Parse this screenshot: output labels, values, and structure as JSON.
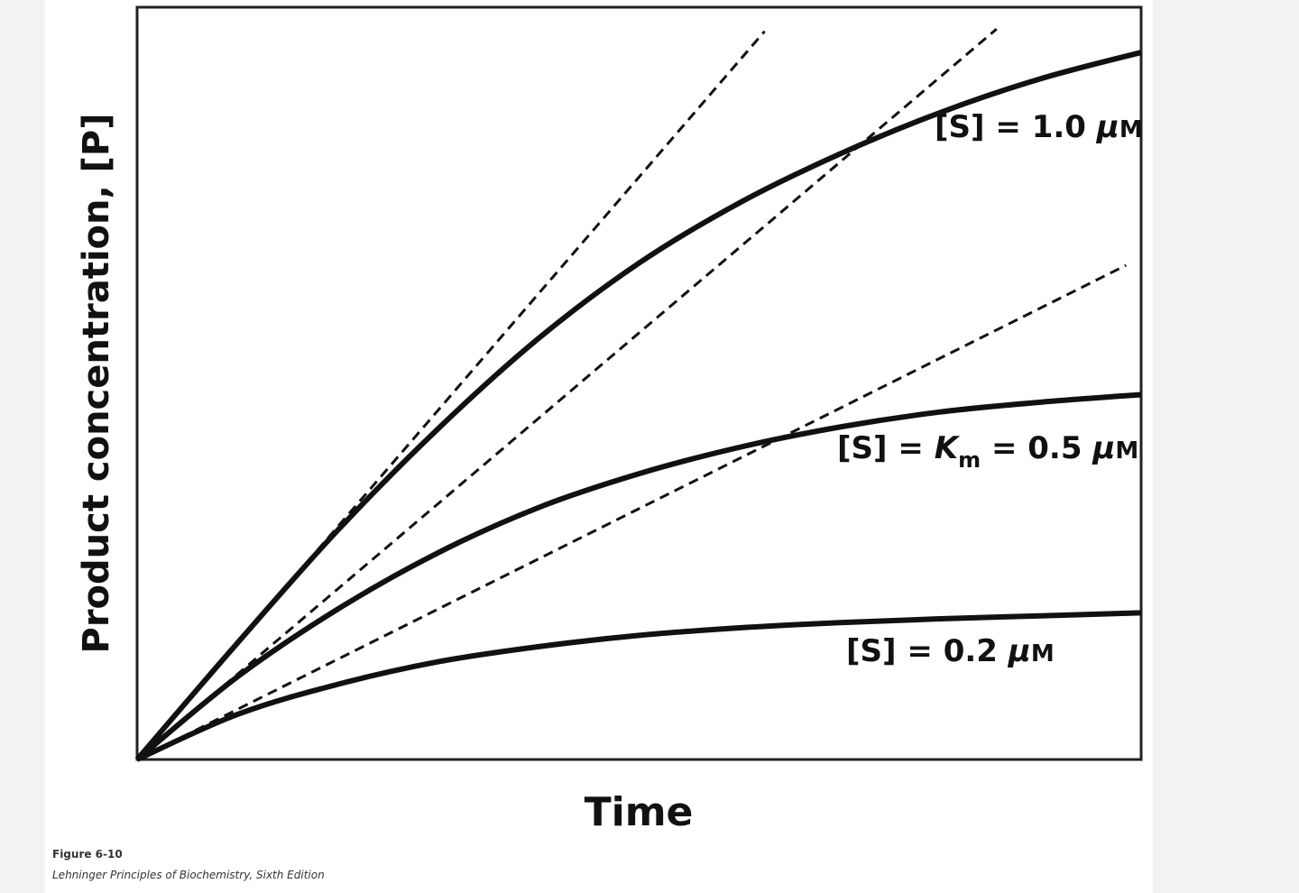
{
  "chart_data": {
    "type": "line",
    "title": "",
    "xlabel": "Time",
    "ylabel": "Product concentration, [P]",
    "xlim": [
      0,
      10
    ],
    "ylim": [
      0,
      10
    ],
    "grid": false,
    "x": [
      0,
      1,
      2,
      3,
      4,
      5,
      6,
      7,
      8,
      9,
      10
    ],
    "series": [
      {
        "name": "[S] = 1.0 μM",
        "label_parts": [
          "[S] = 1.0 ",
          "μ",
          "M"
        ],
        "values": [
          0,
          1.55,
          3.05,
          4.4,
          5.6,
          6.6,
          7.4,
          8.05,
          8.6,
          9.05,
          9.4
        ],
        "initial_rate_tangent": [
          [
            0,
            0
          ],
          [
            6.25,
            9.68
          ]
        ]
      },
      {
        "name": "[S] = Km = 0.5 μM",
        "label_parts": [
          "[S] = ",
          "K",
          "m",
          " = 0.5 ",
          "μ",
          "M"
        ],
        "values": [
          0,
          1.1,
          2.0,
          2.75,
          3.35,
          3.8,
          4.15,
          4.42,
          4.62,
          4.75,
          4.85
        ],
        "initial_rate_tangent": [
          [
            0,
            0
          ],
          [
            8.56,
            9.71
          ]
        ]
      },
      {
        "name": "[S] = 0.2 μM",
        "label_parts": [
          "[S] = 0.2 ",
          "μ",
          "M"
        ],
        "values": [
          0,
          0.6,
          1.0,
          1.3,
          1.5,
          1.65,
          1.75,
          1.82,
          1.87,
          1.91,
          1.95
        ],
        "initial_rate_tangent": [
          [
            0,
            0
          ],
          [
            9.85,
            6.57
          ]
        ]
      }
    ],
    "line_color": "#111111",
    "tangent_style": "dashed"
  },
  "caption": {
    "figure": "Figure 6-10",
    "source": "Lehninger Principles of Biochemistry, Sixth Edition"
  }
}
